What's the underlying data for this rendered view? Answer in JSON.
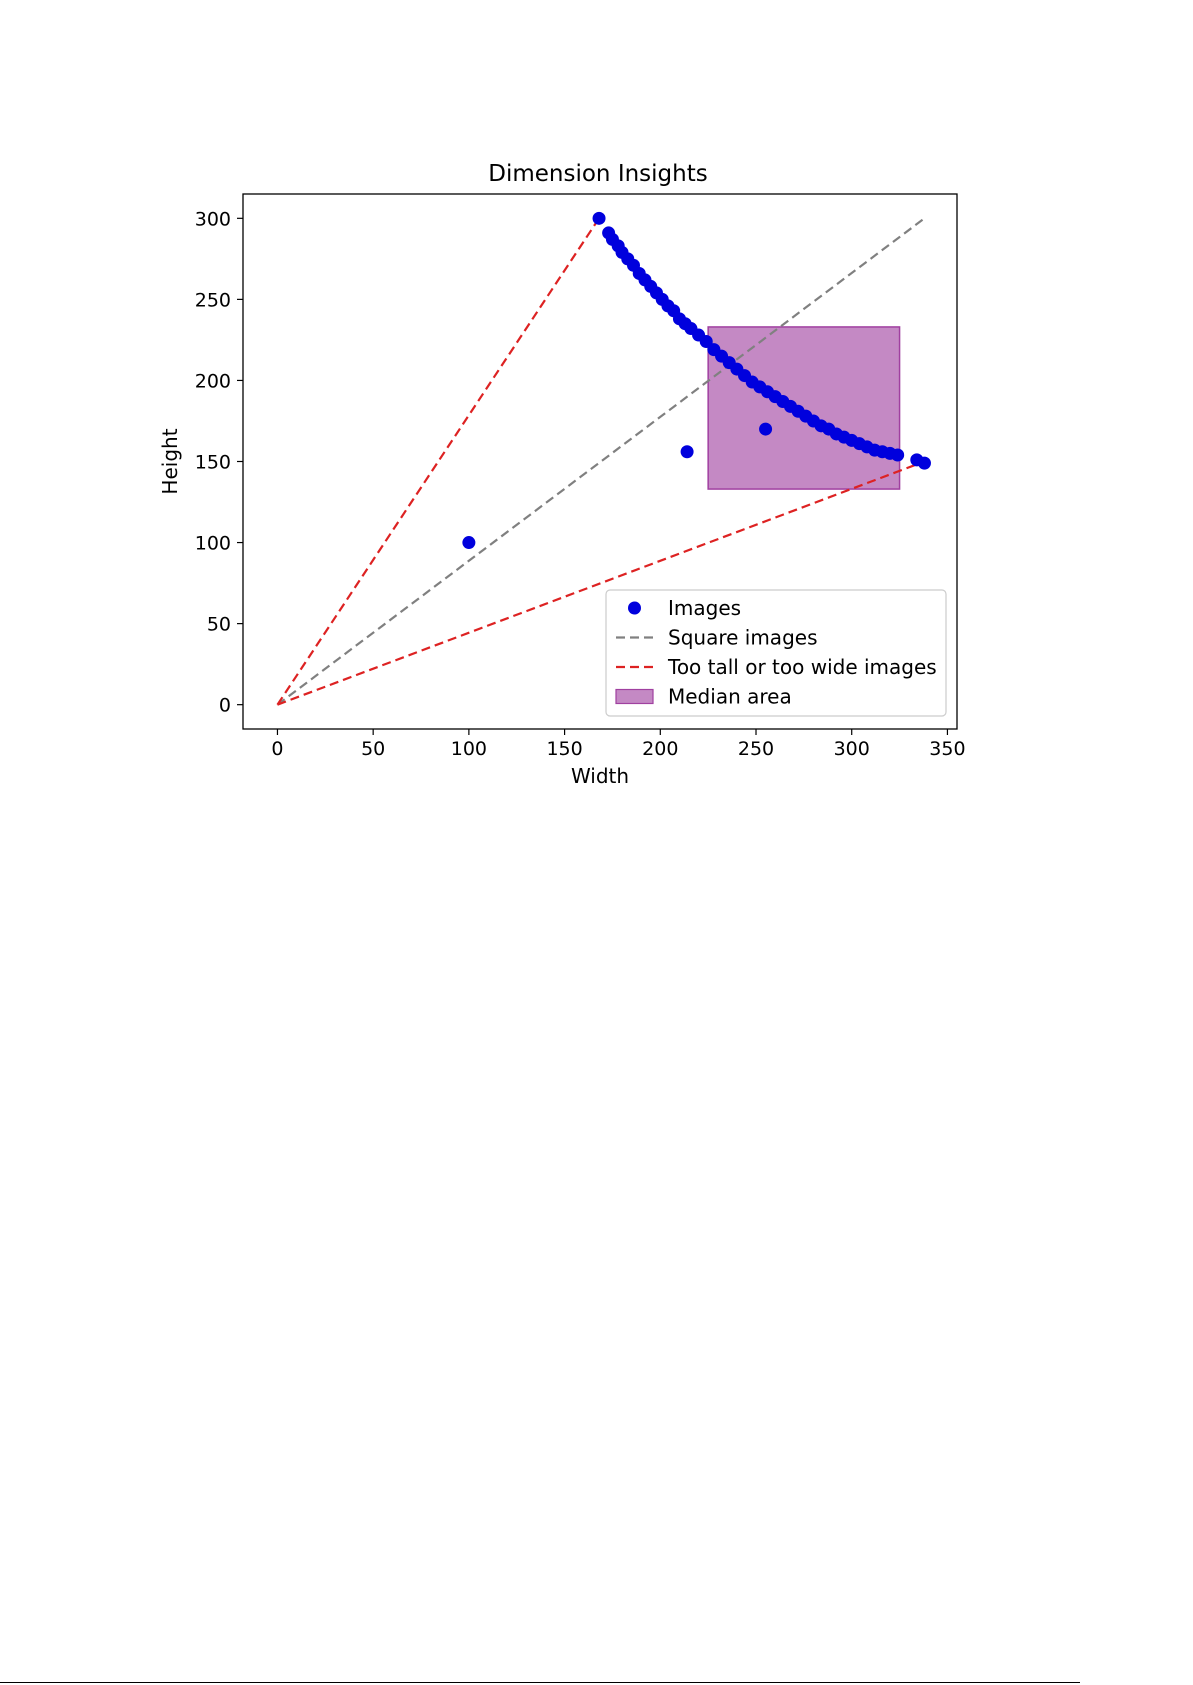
{
  "chart_data": {
    "type": "scatter",
    "title": "Dimension Insights",
    "xlabel": "Width",
    "ylabel": "Height",
    "xlim": [
      -18,
      355
    ],
    "ylim": [
      -15,
      315
    ],
    "xticks": [
      0,
      50,
      100,
      150,
      200,
      250,
      300,
      350
    ],
    "yticks": [
      0,
      50,
      100,
      150,
      200,
      250,
      300
    ],
    "grid": false,
    "legend_position": "lower-right",
    "colors": {
      "points": "#0000dd",
      "square_line": "#808080",
      "limit_lines": "#dd2222",
      "median_area": "#a040a0"
    },
    "series": [
      {
        "name": "Images",
        "kind": "scatter",
        "x": [
          100,
          168,
          173,
          175,
          178,
          180,
          183,
          186,
          189,
          192,
          195,
          198,
          201,
          204,
          207,
          210,
          213,
          214,
          216,
          220,
          224,
          228,
          232,
          236,
          240,
          244,
          248,
          252,
          255,
          256,
          260,
          264,
          268,
          272,
          276,
          280,
          284,
          288,
          292,
          296,
          300,
          304,
          308,
          312,
          316,
          320,
          324,
          334,
          338
        ],
        "y": [
          100,
          300,
          291,
          287,
          283,
          279,
          275,
          271,
          266,
          262,
          258,
          254,
          250,
          246,
          243,
          238,
          235,
          156,
          232,
          228,
          224,
          219,
          215,
          211,
          207,
          203,
          199,
          196,
          170,
          193,
          190,
          187,
          184,
          181,
          178,
          175,
          172,
          170,
          167,
          165,
          163,
          161,
          159,
          157,
          156,
          155,
          154,
          151,
          149
        ]
      },
      {
        "name": "Square images",
        "kind": "line",
        "style": "dashed",
        "x": [
          0,
          338
        ],
        "y": [
          0,
          300
        ]
      },
      {
        "name": "Too tall or too wide images",
        "kind": "line",
        "style": "dashed",
        "segments": [
          {
            "x": [
              0,
              168
            ],
            "y": [
              0,
              300
            ]
          },
          {
            "x": [
              0,
              338
            ],
            "y": [
              0,
              150
            ]
          }
        ]
      },
      {
        "name": "Median area",
        "kind": "rect",
        "x": [
          225,
          325
        ],
        "y": [
          133,
          233
        ]
      }
    ]
  }
}
